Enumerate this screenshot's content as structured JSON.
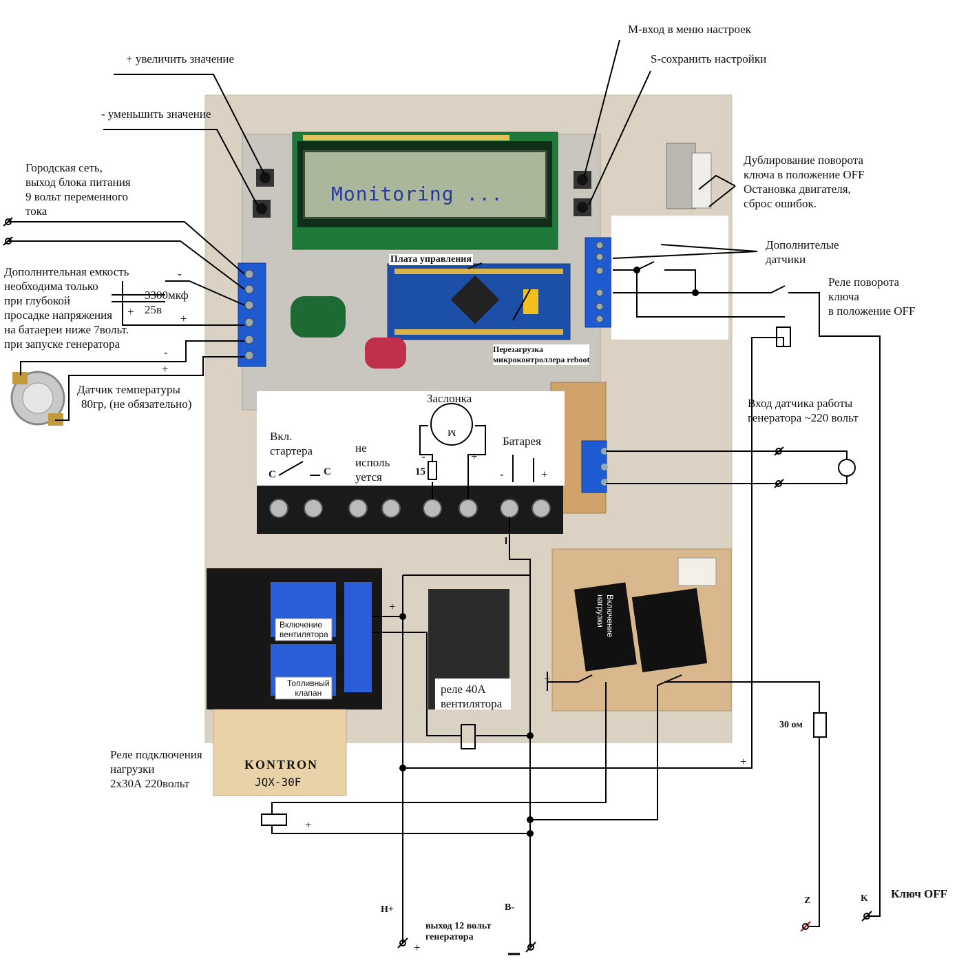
{
  "lcd": {
    "text": "Monitoring ..."
  },
  "labels": {
    "m_menu": "М-вход в меню настроек",
    "s_save": "S-сохранить настройки",
    "plus_inc": "+  увеличить значение",
    "minus_dec": "- уменьшить значение",
    "city_net_1": "Городская сеть,",
    "city_net_2": "выход блока питания",
    "city_net_3": "9 вольт переменного",
    "city_net_4": "тока",
    "cap_1": "Дополнительная емкость",
    "cap_2": "необходима только",
    "cap_3": "при глубокой",
    "cap_4": "просадке напряжения",
    "cap_5": "на батаереи ниже 7вольт.",
    "cap_6": "при запуске генератора",
    "cap_value_1": "3300мкф",
    "cap_value_2": "25в",
    "temp_1": "Датчик температуры",
    "temp_2": "80гр, (не обязательно)",
    "dup_1": "Дублирование поворота",
    "dup_2": "ключа в положение OFF",
    "dup_3": "Остановка двигателя,",
    "dup_4": "сброс ошибок.",
    "extra_1": "Дополнителые",
    "extra_2": "датчики",
    "relay_key_1": "Реле поворота",
    "relay_key_2": "ключа",
    "relay_key_3": "в положение OFF",
    "gen_in_1": "Вход датчика работы",
    "gen_in_2": "генератора ~220 вольт",
    "board": "Плата  управления",
    "reboot_1": "Перезагрузка",
    "reboot_2": "микроконтроллера  reboot",
    "damper": "Заслонка",
    "starter_1": "Вкл.",
    "starter_2": "стартера",
    "not_used_1": "не",
    "not_used_2": "исполь",
    "not_used_3": "уется",
    "battery": "Батарея",
    "r15": "15",
    "c": "C",
    "fan_relay_1": "реле   40А",
    "fan_relay_2": "вентилятора",
    "fan_on_1": "Включение",
    "fan_on_2": "вентилятора",
    "fuel_1": "Топливный",
    "fuel_2": "клапан",
    "load_on_1": "Включение",
    "load_on_2": "нагрузки",
    "load_relay_1": "Реле подключения",
    "load_relay_2": "нагрузки",
    "load_relay_3": "2х30А 220вольт",
    "kontron": "KONTRON",
    "jqx": "JQX-30F",
    "r30": "30 ом",
    "z": "Z",
    "k": "K",
    "key_off": "Ключ OFF",
    "h_plus": "Н+",
    "b_minus": "В-",
    "out12_1": "выход 12 вольт",
    "out12_2": "генератора",
    "plus": "+",
    "minus": "-",
    "motor": "M"
  }
}
